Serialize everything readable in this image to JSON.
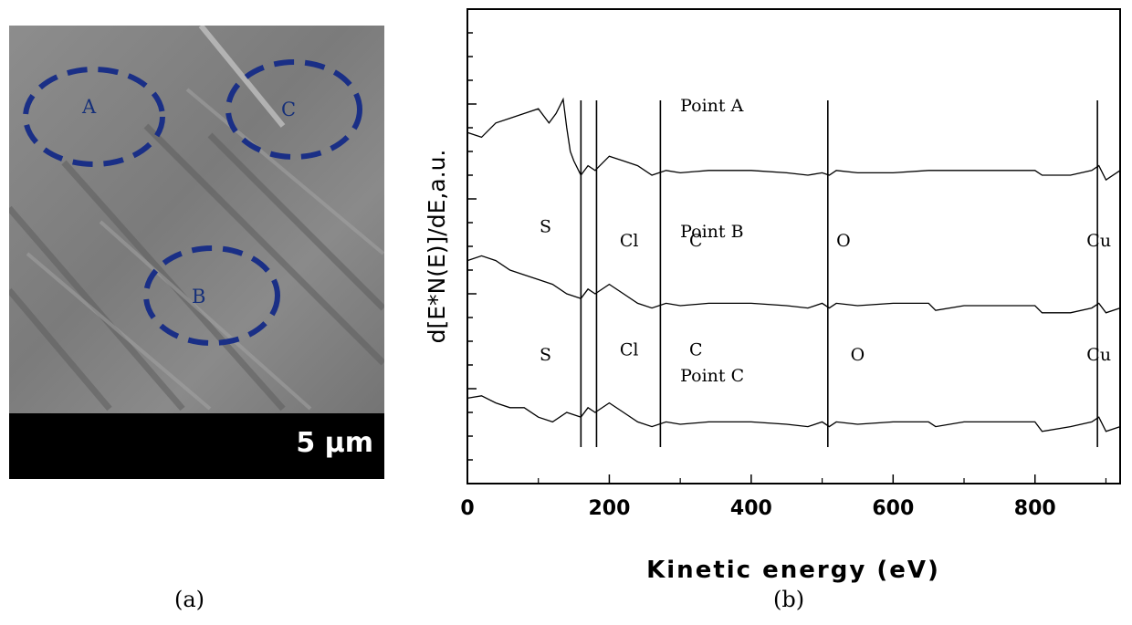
{
  "panel_a": {
    "caption": "(a)",
    "scale_bar_text": "5 µm",
    "points": [
      {
        "label": "A"
      },
      {
        "label": "C"
      },
      {
        "label": "B"
      }
    ],
    "ellipse_color": "#1a2f86"
  },
  "panel_b": {
    "caption": "(b)"
  },
  "chart_data": {
    "type": "line",
    "xlabel": "Kinetic energy (eV)",
    "ylabel": "d[E*N(E)]/dE,a.u.",
    "xlim": [
      0,
      920
    ],
    "x_ticks": [
      "0",
      "200",
      "400",
      "600",
      "800"
    ],
    "x_tick_values": [
      0,
      200,
      400,
      600,
      800
    ],
    "y_ticks_labeled": false,
    "series": [
      {
        "name": "Point A",
        "x": [
          0,
          20,
          40,
          60,
          80,
          100,
          115,
          125,
          135,
          140,
          145,
          150,
          160,
          170,
          180,
          200,
          220,
          240,
          260,
          280,
          300,
          340,
          400,
          450,
          480,
          500,
          510,
          520,
          550,
          600,
          650,
          660,
          700,
          750,
          800,
          810,
          850,
          880,
          890,
          900,
          920
        ],
        "y": [
          7.4,
          7.3,
          7.6,
          7.7,
          7.8,
          7.9,
          7.6,
          7.8,
          8.1,
          7.5,
          7.0,
          6.8,
          6.5,
          6.7,
          6.6,
          6.9,
          6.8,
          6.7,
          6.5,
          6.6,
          6.55,
          6.6,
          6.6,
          6.55,
          6.5,
          6.55,
          6.5,
          6.6,
          6.55,
          6.55,
          6.6,
          6.6,
          6.6,
          6.6,
          6.6,
          6.5,
          6.5,
          6.6,
          6.7,
          6.4,
          6.6
        ]
      },
      {
        "name": "Point B",
        "x": [
          0,
          20,
          40,
          60,
          80,
          100,
          120,
          140,
          160,
          170,
          180,
          200,
          220,
          240,
          260,
          280,
          300,
          340,
          400,
          450,
          480,
          500,
          510,
          520,
          550,
          600,
          650,
          660,
          700,
          750,
          800,
          810,
          850,
          880,
          890,
          900,
          920
        ],
        "y": [
          4.7,
          4.8,
          4.7,
          4.5,
          4.4,
          4.3,
          4.2,
          4.0,
          3.9,
          4.1,
          4.0,
          4.2,
          4.0,
          3.8,
          3.7,
          3.8,
          3.75,
          3.8,
          3.8,
          3.75,
          3.7,
          3.8,
          3.7,
          3.8,
          3.75,
          3.8,
          3.8,
          3.65,
          3.75,
          3.75,
          3.75,
          3.6,
          3.6,
          3.7,
          3.8,
          3.6,
          3.7
        ]
      },
      {
        "name": "Point C",
        "x": [
          0,
          20,
          40,
          60,
          80,
          100,
          120,
          140,
          160,
          170,
          180,
          200,
          220,
          240,
          260,
          280,
          300,
          340,
          400,
          450,
          480,
          500,
          510,
          520,
          550,
          600,
          650,
          660,
          700,
          750,
          800,
          810,
          850,
          880,
          890,
          900,
          920
        ],
        "y": [
          1.8,
          1.85,
          1.7,
          1.6,
          1.6,
          1.4,
          1.3,
          1.5,
          1.4,
          1.6,
          1.5,
          1.7,
          1.5,
          1.3,
          1.2,
          1.3,
          1.25,
          1.3,
          1.3,
          1.25,
          1.2,
          1.3,
          1.2,
          1.3,
          1.25,
          1.3,
          1.3,
          1.2,
          1.3,
          1.3,
          1.3,
          1.1,
          1.2,
          1.3,
          1.4,
          1.1,
          1.2
        ]
      }
    ],
    "vertical_markers": [
      160,
      182,
      272,
      508,
      888
    ],
    "annotations": [
      {
        "text": "S",
        "x": 110,
        "y": 5.3
      },
      {
        "text": "Cl",
        "x": 228,
        "y": 5.0
      },
      {
        "text": "C",
        "x": 322,
        "y": 5.0
      },
      {
        "text": "O",
        "x": 530,
        "y": 5.0
      },
      {
        "text": "Cu",
        "x": 890,
        "y": 5.0
      },
      {
        "text": "S",
        "x": 110,
        "y": 2.6
      },
      {
        "text": "Cl",
        "x": 228,
        "y": 2.7
      },
      {
        "text": "C",
        "x": 322,
        "y": 2.7
      },
      {
        "text": "O",
        "x": 550,
        "y": 2.6
      },
      {
        "text": "Cu",
        "x": 890,
        "y": 2.6
      }
    ],
    "ylim": [
      0,
      10
    ]
  }
}
